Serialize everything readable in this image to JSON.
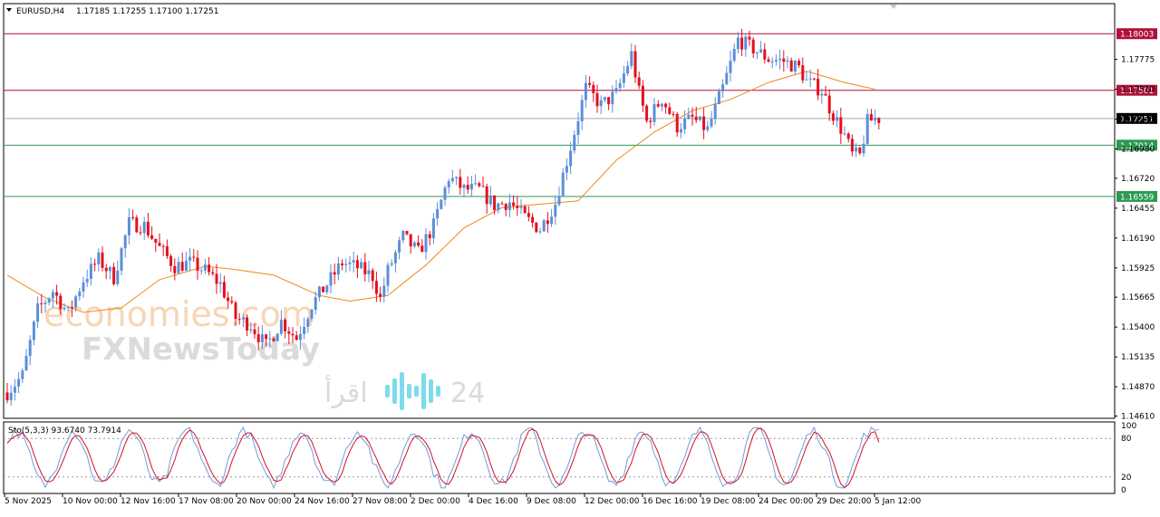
{
  "header": {
    "symbol_timeframe": "EURUSD,H4",
    "ohlc": "1.17185 1.17255 1.17100 1.17251"
  },
  "indicator": {
    "label": "Sto(5,3,3) 93.6740 73.7914",
    "levels": [
      "100",
      "80",
      "20",
      "0"
    ]
  },
  "watermarks": {
    "brand1": "economies.com",
    "brand2": "FXNewsToday",
    "brand3_text": "اقرأ",
    "brand3_num": "24"
  },
  "colors": {
    "bg": "#ffffff",
    "bull": "#5b8fd8",
    "bear": "#e4101e",
    "ma": "#ec8a1a",
    "resistance": "#b0103a",
    "support": "#2b9a52",
    "current": "#aaaaaa",
    "stoch_main": "#6f9ed8",
    "stoch_signal": "#d4102a"
  },
  "chart_data": {
    "type": "candlestick",
    "symbol": "EURUSD",
    "timeframe": "H4",
    "ylim": [
      1.1459,
      1.1827
    ],
    "y_ticks": [
      "1.17775",
      "1.17510",
      "1.17245",
      "1.16980",
      "1.16720",
      "1.16455",
      "1.16190",
      "1.15925",
      "1.15665",
      "1.15400",
      "1.15135",
      "1.14870",
      "1.14610"
    ],
    "x_ticks": [
      "5 Nov 2025",
      "10 Nov 00:00",
      "12 Nov 16:00",
      "17 Nov 08:00",
      "20 Nov 00:00",
      "24 Nov 16:00",
      "27 Nov 08:00",
      "2 Dec 00:00",
      "4 Dec 16:00",
      "9 Dec 08:00",
      "12 Dec 00:00",
      "16 Dec 16:00",
      "19 Dec 08:00",
      "24 Dec 00:00",
      "29 Dec 20:00",
      "5 Jan 12:00"
    ],
    "levels": [
      {
        "value": 1.18003,
        "label": "1.18003",
        "kind": "resistance"
      },
      {
        "value": 1.17501,
        "label": "1.17501",
        "kind": "resistance"
      },
      {
        "value": 1.17251,
        "label": "1.17251",
        "kind": "current"
      },
      {
        "value": 1.17014,
        "label": "1.17014",
        "kind": "support"
      },
      {
        "value": 1.16559,
        "label": "1.16559",
        "kind": "support"
      }
    ],
    "moving_average": [
      [
        0,
        1.1586
      ],
      [
        10,
        1.1566
      ],
      [
        20,
        1.1553
      ],
      [
        30,
        1.1557
      ],
      [
        40,
        1.1582
      ],
      [
        52,
        1.1594
      ],
      [
        60,
        1.1591
      ],
      [
        70,
        1.1586
      ],
      [
        82,
        1.1568
      ],
      [
        90,
        1.1563
      ],
      [
        100,
        1.1568
      ],
      [
        110,
        1.1595
      ],
      [
        120,
        1.1628
      ],
      [
        130,
        1.1646
      ],
      [
        140,
        1.1649
      ],
      [
        150,
        1.1652
      ],
      [
        160,
        1.1688
      ],
      [
        170,
        1.1713
      ],
      [
        180,
        1.1732
      ],
      [
        190,
        1.1742
      ],
      [
        200,
        1.1757
      ],
      [
        210,
        1.1767
      ],
      [
        220,
        1.1757
      ],
      [
        228,
        1.1751
      ]
    ],
    "price_path": [
      [
        0,
        1.1482
      ],
      [
        4,
        1.1497
      ],
      [
        8,
        1.1555
      ],
      [
        12,
        1.1572
      ],
      [
        16,
        1.1552
      ],
      [
        20,
        1.1582
      ],
      [
        24,
        1.16
      ],
      [
        28,
        1.1584
      ],
      [
        32,
        1.1632
      ],
      [
        36,
        1.163
      ],
      [
        40,
        1.161
      ],
      [
        44,
        1.1594
      ],
      [
        48,
        1.1597
      ],
      [
        52,
        1.159
      ],
      [
        56,
        1.1578
      ],
      [
        60,
        1.1548
      ],
      [
        64,
        1.1542
      ],
      [
        68,
        1.1523
      ],
      [
        72,
        1.1545
      ],
      [
        76,
        1.153
      ],
      [
        80,
        1.156
      ],
      [
        84,
        1.1578
      ],
      [
        88,
        1.1597
      ],
      [
        92,
        1.1593
      ],
      [
        96,
        1.1585
      ],
      [
        98,
        1.1565
      ],
      [
        100,
        1.159
      ],
      [
        104,
        1.162
      ],
      [
        108,
        1.1606
      ],
      [
        112,
        1.163
      ],
      [
        116,
        1.1673
      ],
      [
        120,
        1.1662
      ],
      [
        124,
        1.1662
      ],
      [
        128,
        1.1648
      ],
      [
        132,
        1.1651
      ],
      [
        136,
        1.1637
      ],
      [
        140,
        1.1627
      ],
      [
        144,
        1.165
      ],
      [
        148,
        1.17
      ],
      [
        152,
        1.1752
      ],
      [
        156,
        1.1737
      ],
      [
        160,
        1.1747
      ],
      [
        164,
        1.1782
      ],
      [
        166,
        1.1748
      ],
      [
        168,
        1.1722
      ],
      [
        172,
        1.1743
      ],
      [
        176,
        1.1718
      ],
      [
        180,
        1.1725
      ],
      [
        184,
        1.1715
      ],
      [
        188,
        1.1752
      ],
      [
        192,
        1.1795
      ],
      [
        196,
        1.1787
      ],
      [
        200,
        1.1778
      ],
      [
        204,
        1.1776
      ],
      [
        208,
        1.177
      ],
      [
        210,
        1.1758
      ],
      [
        214,
        1.175
      ],
      [
        216,
        1.1735
      ],
      [
        220,
        1.171
      ],
      [
        222,
        1.1693
      ],
      [
        224,
        1.1692
      ],
      [
        226,
        1.1722
      ],
      [
        228,
        1.1725
      ]
    ],
    "stochastic": {
      "name": "Sto(5,3,3)",
      "main_last": 93.674,
      "signal_last": 73.7914,
      "ylim": [
        0,
        100
      ],
      "levels": [
        20,
        80
      ]
    }
  }
}
